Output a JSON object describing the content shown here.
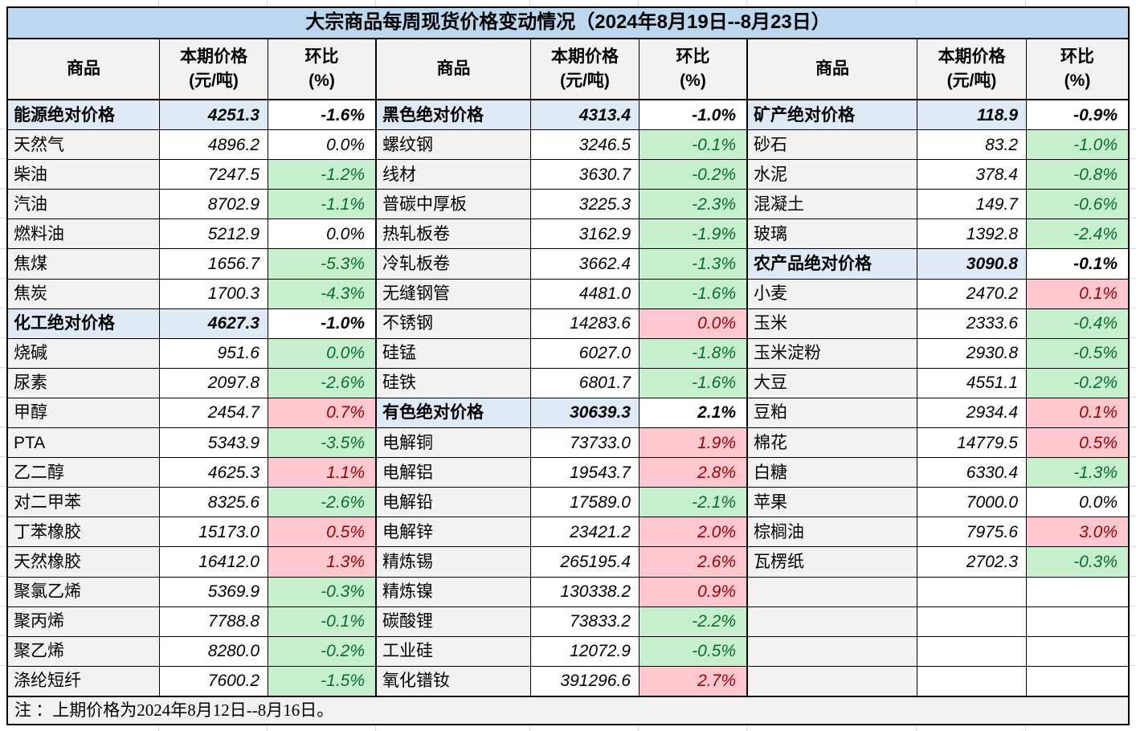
{
  "title": "大宗商品每周现货价格变动情况（2024年8月19日--8月23日）",
  "header": {
    "commodity": "商品",
    "price_top": "本期价格",
    "price_bottom": "(元/吨)",
    "change_top": "环比",
    "change_bottom": "(%)"
  },
  "note": "注 ：上期价格为2024年8月12日--8月16日。",
  "colors": {
    "title_bg": "#BDD7EE",
    "category_bg": "#DEEBF7",
    "label_bg": "#F2F2F2",
    "up_bg": "#FFC7CE",
    "up_text": "#9C0006",
    "down_bg": "#C6EFCE",
    "down_text": "#0A6E28",
    "border": "#000000"
  },
  "legend_semantics": {
    "c": "category-row-lightblue-bold",
    "g": "decline-green",
    "r": "increase-red",
    "n": "no-change-plain",
    "e": "empty-row"
  },
  "groups": [
    {
      "rows": [
        [
          "能源绝对价格",
          "4251.3",
          "-1.6%",
          "c"
        ],
        [
          "天然气",
          "4896.2",
          "0.0%",
          "n"
        ],
        [
          "柴油",
          "7247.5",
          "-1.2%",
          "g"
        ],
        [
          "汽油",
          "8702.9",
          "-1.1%",
          "g"
        ],
        [
          "燃料油",
          "5212.9",
          "0.0%",
          "n"
        ],
        [
          "焦煤",
          "1656.7",
          "-5.3%",
          "g"
        ],
        [
          "焦炭",
          "1700.3",
          "-4.3%",
          "g"
        ],
        [
          "化工绝对价格",
          "4627.3",
          "-1.0%",
          "c"
        ],
        [
          "烧碱",
          "951.6",
          "0.0%",
          "g"
        ],
        [
          "尿素",
          "2097.8",
          "-2.6%",
          "g"
        ],
        [
          "甲醇",
          "2454.7",
          "0.7%",
          "r"
        ],
        [
          "PTA",
          "5343.9",
          "-3.5%",
          "g"
        ],
        [
          "乙二醇",
          "4625.3",
          "1.1%",
          "r"
        ],
        [
          "对二甲苯",
          "8325.6",
          "-2.6%",
          "g"
        ],
        [
          "丁苯橡胶",
          "15173.0",
          "0.5%",
          "r"
        ],
        [
          "天然橡胶",
          "16412.0",
          "1.3%",
          "r"
        ],
        [
          "聚氯乙烯",
          "5369.9",
          "-0.3%",
          "g"
        ],
        [
          "聚丙烯",
          "7788.8",
          "-0.1%",
          "g"
        ],
        [
          "聚乙烯",
          "8280.0",
          "-0.2%",
          "g"
        ],
        [
          "涤纶短纤",
          "7600.2",
          "-1.5%",
          "g"
        ]
      ]
    },
    {
      "rows": [
        [
          "黑色绝对价格",
          "4313.4",
          "-1.0%",
          "c"
        ],
        [
          "螺纹钢",
          "3246.5",
          "-0.1%",
          "g"
        ],
        [
          "线材",
          "3630.7",
          "-0.2%",
          "g"
        ],
        [
          "普碳中厚板",
          "3225.3",
          "-2.3%",
          "g"
        ],
        [
          "热轧板卷",
          "3162.9",
          "-1.9%",
          "g"
        ],
        [
          "冷轧板卷",
          "3662.4",
          "-1.3%",
          "g"
        ],
        [
          "无缝钢管",
          "4481.0",
          "-1.6%",
          "g"
        ],
        [
          "不锈钢",
          "14283.6",
          "0.0%",
          "r"
        ],
        [
          "硅锰",
          "6027.0",
          "-1.8%",
          "g"
        ],
        [
          "硅铁",
          "6801.7",
          "-1.6%",
          "g"
        ],
        [
          "有色绝对价格",
          "30639.3",
          "2.1%",
          "c"
        ],
        [
          "电解铜",
          "73733.0",
          "1.9%",
          "r"
        ],
        [
          "电解铝",
          "19543.7",
          "2.8%",
          "r"
        ],
        [
          "电解铅",
          "17589.0",
          "-2.1%",
          "g"
        ],
        [
          "电解锌",
          "23421.2",
          "2.0%",
          "r"
        ],
        [
          "精炼锡",
          "265195.4",
          "2.6%",
          "r"
        ],
        [
          "精炼镍",
          "130338.2",
          "0.9%",
          "r"
        ],
        [
          "碳酸锂",
          "73833.2",
          "-2.2%",
          "g"
        ],
        [
          "工业硅",
          "12072.9",
          "-0.5%",
          "g"
        ],
        [
          "氧化镨钕",
          "391296.6",
          "2.7%",
          "r"
        ]
      ]
    },
    {
      "rows": [
        [
          "矿产绝对价格",
          "118.9",
          "-0.9%",
          "c"
        ],
        [
          "砂石",
          "83.2",
          "-1.0%",
          "g"
        ],
        [
          "水泥",
          "378.4",
          "-0.8%",
          "g"
        ],
        [
          "混凝土",
          "149.7",
          "-0.6%",
          "g"
        ],
        [
          "玻璃",
          "1392.8",
          "-2.4%",
          "g"
        ],
        [
          "农产品绝对价格",
          "3090.8",
          "-0.1%",
          "c"
        ],
        [
          "小麦",
          "2470.2",
          "0.1%",
          "r"
        ],
        [
          "玉米",
          "2333.6",
          "-0.4%",
          "g"
        ],
        [
          "玉米淀粉",
          "2930.8",
          "-0.5%",
          "g"
        ],
        [
          "大豆",
          "4551.1",
          "-0.2%",
          "g"
        ],
        [
          "豆粕",
          "2934.4",
          "0.1%",
          "r"
        ],
        [
          "棉花",
          "14779.5",
          "0.5%",
          "r"
        ],
        [
          "白糖",
          "6330.4",
          "-1.3%",
          "g"
        ],
        [
          "苹果",
          "7000.0",
          "0.0%",
          "n"
        ],
        [
          "棕榈油",
          "7975.6",
          "3.0%",
          "r"
        ],
        [
          "瓦楞纸",
          "2702.3",
          "-0.3%",
          "g"
        ],
        [
          "",
          "",
          "",
          "e"
        ],
        [
          "",
          "",
          "",
          "e"
        ],
        [
          "",
          "",
          "",
          "e"
        ],
        [
          "",
          "",
          "",
          "e"
        ]
      ]
    }
  ]
}
